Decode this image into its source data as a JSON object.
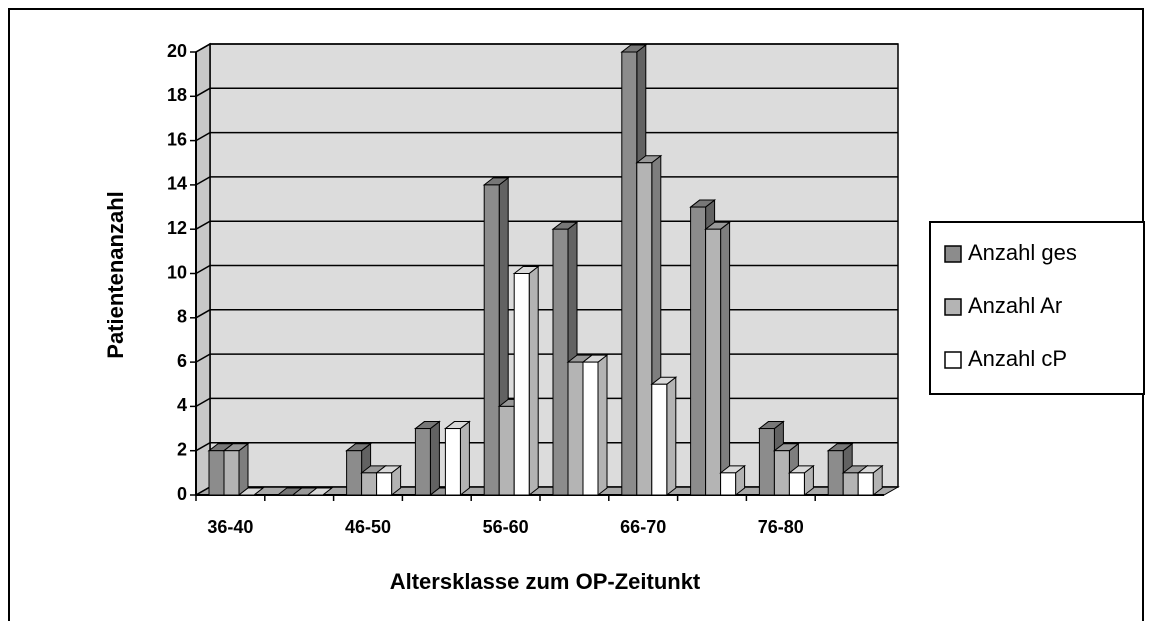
{
  "chart_data": {
    "type": "bar",
    "x_label": "Altersklasse zum OP-Zeitunkt",
    "y_label": "Patientenanzahl",
    "categories": [
      "36-40",
      null,
      "46-50",
      null,
      "56-60",
      null,
      "66-70",
      null,
      "76-80",
      null
    ],
    "series": [
      {
        "name": "Anzahl ges",
        "color": "#8c8c8c",
        "values": [
          2,
          0,
          2,
          3,
          14,
          12,
          20,
          13,
          3,
          2
        ]
      },
      {
        "name": "Anzahl Ar",
        "color": "#b4b4b4",
        "values": [
          2,
          0,
          1,
          0,
          4,
          6,
          15,
          12,
          2,
          1
        ]
      },
      {
        "name": "Anzahl cP",
        "color": "#ffffff",
        "values": [
          0,
          0,
          1,
          3,
          10,
          6,
          5,
          1,
          1,
          1
        ]
      }
    ],
    "ylim": [
      0,
      20
    ],
    "yticks": [
      0,
      2,
      4,
      6,
      8,
      10,
      12,
      14,
      16,
      18,
      20
    ],
    "grid": true,
    "legend": "right"
  }
}
